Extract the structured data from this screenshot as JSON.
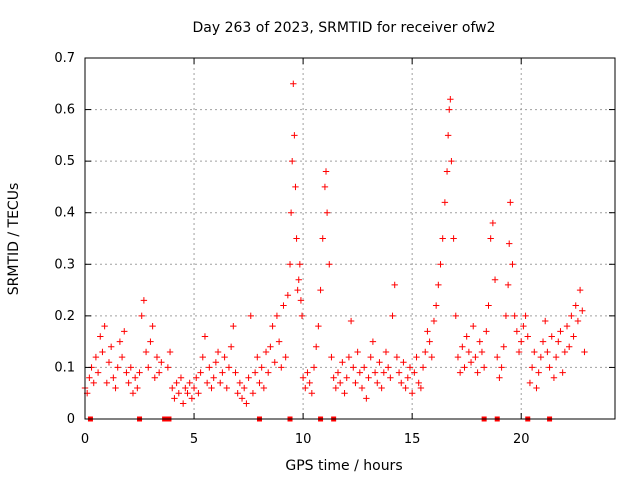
{
  "chart_data": {
    "type": "scatter",
    "title": "Day 263 of 2023, SRMTID for receiver ofw2",
    "xlabel": "GPS time / hours",
    "ylabel": "SRMTID / TECUs",
    "xlim": [
      0,
      24.3
    ],
    "ylim": [
      0,
      0.7
    ],
    "xticks": [
      "0",
      "5",
      "10",
      "15",
      "20"
    ],
    "xtick_values": [
      0,
      5,
      10,
      15,
      20
    ],
    "yticks": [
      "0",
      "0.1",
      "0.2",
      "0.3",
      "0.4",
      "0.5",
      "0.6",
      "0.7"
    ],
    "ytick_values": [
      0,
      0.1,
      0.2,
      0.3,
      0.4,
      0.5,
      0.6,
      0.7
    ],
    "grid": true,
    "marker": "+",
    "color": "#ff0000",
    "baseline_markers_x": [
      0.25,
      2.5,
      3.65,
      3.85,
      8.0,
      9.4,
      10.8,
      11.4,
      18.3,
      18.9,
      20.3,
      21.3
    ],
    "series": [
      {
        "name": "SRMTID",
        "points": [
          [
            0.0,
            0.06
          ],
          [
            0.1,
            0.05
          ],
          [
            0.2,
            0.08
          ],
          [
            0.3,
            0.1
          ],
          [
            0.4,
            0.07
          ],
          [
            0.5,
            0.12
          ],
          [
            0.6,
            0.09
          ],
          [
            0.7,
            0.16
          ],
          [
            0.8,
            0.13
          ],
          [
            0.9,
            0.18
          ],
          [
            1.0,
            0.07
          ],
          [
            1.1,
            0.11
          ],
          [
            1.2,
            0.14
          ],
          [
            1.3,
            0.08
          ],
          [
            1.4,
            0.06
          ],
          [
            1.5,
            0.1
          ],
          [
            1.6,
            0.15
          ],
          [
            1.7,
            0.12
          ],
          [
            1.8,
            0.17
          ],
          [
            1.9,
            0.09
          ],
          [
            2.0,
            0.07
          ],
          [
            2.1,
            0.1
          ],
          [
            2.2,
            0.05
          ],
          [
            2.3,
            0.08
          ],
          [
            2.4,
            0.06
          ],
          [
            2.5,
            0.09
          ],
          [
            2.6,
            0.2
          ],
          [
            2.7,
            0.23
          ],
          [
            2.8,
            0.13
          ],
          [
            2.9,
            0.1
          ],
          [
            3.0,
            0.15
          ],
          [
            3.1,
            0.18
          ],
          [
            3.2,
            0.08
          ],
          [
            3.3,
            0.12
          ],
          [
            3.4,
            0.09
          ],
          [
            3.5,
            0.11
          ],
          [
            3.8,
            0.1
          ],
          [
            3.9,
            0.13
          ],
          [
            4.0,
            0.06
          ],
          [
            4.1,
            0.04
          ],
          [
            4.2,
            0.07
          ],
          [
            4.3,
            0.05
          ],
          [
            4.4,
            0.08
          ],
          [
            4.5,
            0.03
          ],
          [
            4.6,
            0.06
          ],
          [
            4.7,
            0.05
          ],
          [
            4.8,
            0.07
          ],
          [
            4.9,
            0.04
          ],
          [
            5.0,
            0.06
          ],
          [
            5.1,
            0.08
          ],
          [
            5.2,
            0.05
          ],
          [
            5.3,
            0.09
          ],
          [
            5.4,
            0.12
          ],
          [
            5.5,
            0.16
          ],
          [
            5.6,
            0.07
          ],
          [
            5.7,
            0.1
          ],
          [
            5.8,
            0.06
          ],
          [
            5.9,
            0.08
          ],
          [
            6.0,
            0.11
          ],
          [
            6.1,
            0.13
          ],
          [
            6.2,
            0.07
          ],
          [
            6.3,
            0.09
          ],
          [
            6.4,
            0.12
          ],
          [
            6.5,
            0.06
          ],
          [
            6.6,
            0.1
          ],
          [
            6.7,
            0.14
          ],
          [
            6.8,
            0.18
          ],
          [
            6.9,
            0.09
          ],
          [
            7.0,
            0.05
          ],
          [
            7.1,
            0.07
          ],
          [
            7.2,
            0.04
          ],
          [
            7.3,
            0.06
          ],
          [
            7.4,
            0.03
          ],
          [
            7.5,
            0.08
          ],
          [
            7.6,
            0.2
          ],
          [
            7.7,
            0.05
          ],
          [
            7.8,
            0.09
          ],
          [
            7.9,
            0.12
          ],
          [
            8.0,
            0.07
          ],
          [
            8.1,
            0.1
          ],
          [
            8.2,
            0.06
          ],
          [
            8.3,
            0.13
          ],
          [
            8.4,
            0.09
          ],
          [
            8.5,
            0.14
          ],
          [
            8.6,
            0.18
          ],
          [
            8.7,
            0.11
          ],
          [
            8.8,
            0.2
          ],
          [
            8.9,
            0.15
          ],
          [
            9.0,
            0.1
          ],
          [
            9.1,
            0.22
          ],
          [
            9.2,
            0.12
          ],
          [
            9.3,
            0.24
          ],
          [
            9.4,
            0.3
          ],
          [
            9.45,
            0.4
          ],
          [
            9.5,
            0.5
          ],
          [
            9.55,
            0.65
          ],
          [
            9.6,
            0.55
          ],
          [
            9.65,
            0.45
          ],
          [
            9.7,
            0.35
          ],
          [
            9.75,
            0.25
          ],
          [
            9.8,
            0.27
          ],
          [
            9.85,
            0.3
          ],
          [
            9.9,
            0.23
          ],
          [
            9.95,
            0.2
          ],
          [
            10.0,
            0.08
          ],
          [
            10.1,
            0.06
          ],
          [
            10.2,
            0.09
          ],
          [
            10.3,
            0.07
          ],
          [
            10.4,
            0.05
          ],
          [
            10.5,
            0.1
          ],
          [
            10.6,
            0.14
          ],
          [
            10.7,
            0.18
          ],
          [
            10.8,
            0.25
          ],
          [
            10.9,
            0.35
          ],
          [
            11.0,
            0.45
          ],
          [
            11.05,
            0.48
          ],
          [
            11.1,
            0.4
          ],
          [
            11.2,
            0.3
          ],
          [
            11.3,
            0.12
          ],
          [
            11.4,
            0.08
          ],
          [
            11.5,
            0.06
          ],
          [
            11.6,
            0.09
          ],
          [
            11.7,
            0.07
          ],
          [
            11.8,
            0.11
          ],
          [
            11.9,
            0.05
          ],
          [
            12.0,
            0.08
          ],
          [
            12.1,
            0.12
          ],
          [
            12.2,
            0.19
          ],
          [
            12.3,
            0.1
          ],
          [
            12.4,
            0.07
          ],
          [
            12.5,
            0.13
          ],
          [
            12.6,
            0.09
          ],
          [
            12.7,
            0.06
          ],
          [
            12.8,
            0.1
          ],
          [
            12.9,
            0.04
          ],
          [
            13.0,
            0.08
          ],
          [
            13.1,
            0.12
          ],
          [
            13.2,
            0.15
          ],
          [
            13.3,
            0.09
          ],
          [
            13.4,
            0.07
          ],
          [
            13.5,
            0.11
          ],
          [
            13.6,
            0.06
          ],
          [
            13.7,
            0.09
          ],
          [
            13.8,
            0.13
          ],
          [
            13.9,
            0.1
          ],
          [
            14.0,
            0.08
          ],
          [
            14.1,
            0.2
          ],
          [
            14.2,
            0.26
          ],
          [
            14.3,
            0.12
          ],
          [
            14.4,
            0.09
          ],
          [
            14.5,
            0.07
          ],
          [
            14.6,
            0.11
          ],
          [
            14.7,
            0.06
          ],
          [
            14.8,
            0.08
          ],
          [
            14.9,
            0.1
          ],
          [
            15.0,
            0.05
          ],
          [
            15.1,
            0.09
          ],
          [
            15.2,
            0.12
          ],
          [
            15.3,
            0.07
          ],
          [
            15.4,
            0.06
          ],
          [
            15.5,
            0.1
          ],
          [
            15.6,
            0.13
          ],
          [
            15.7,
            0.17
          ],
          [
            15.8,
            0.15
          ],
          [
            15.9,
            0.12
          ],
          [
            16.0,
            0.19
          ],
          [
            16.1,
            0.22
          ],
          [
            16.2,
            0.26
          ],
          [
            16.3,
            0.3
          ],
          [
            16.4,
            0.35
          ],
          [
            16.5,
            0.42
          ],
          [
            16.6,
            0.48
          ],
          [
            16.65,
            0.55
          ],
          [
            16.7,
            0.6
          ],
          [
            16.75,
            0.62
          ],
          [
            16.8,
            0.5
          ],
          [
            16.9,
            0.35
          ],
          [
            17.0,
            0.2
          ],
          [
            17.1,
            0.12
          ],
          [
            17.2,
            0.09
          ],
          [
            17.3,
            0.14
          ],
          [
            17.4,
            0.1
          ],
          [
            17.5,
            0.16
          ],
          [
            17.6,
            0.13
          ],
          [
            17.7,
            0.11
          ],
          [
            17.8,
            0.18
          ],
          [
            17.9,
            0.12
          ],
          [
            18.0,
            0.09
          ],
          [
            18.1,
            0.15
          ],
          [
            18.2,
            0.13
          ],
          [
            18.3,
            0.1
          ],
          [
            18.4,
            0.17
          ],
          [
            18.5,
            0.22
          ],
          [
            18.6,
            0.35
          ],
          [
            18.7,
            0.38
          ],
          [
            18.8,
            0.27
          ],
          [
            18.9,
            0.12
          ],
          [
            19.0,
            0.08
          ],
          [
            19.1,
            0.1
          ],
          [
            19.2,
            0.14
          ],
          [
            19.3,
            0.2
          ],
          [
            19.4,
            0.26
          ],
          [
            19.45,
            0.34
          ],
          [
            19.5,
            0.42
          ],
          [
            19.6,
            0.3
          ],
          [
            19.7,
            0.2
          ],
          [
            19.8,
            0.17
          ],
          [
            19.9,
            0.13
          ],
          [
            20.0,
            0.15
          ],
          [
            20.1,
            0.18
          ],
          [
            20.2,
            0.2
          ],
          [
            20.3,
            0.16
          ],
          [
            20.4,
            0.07
          ],
          [
            20.5,
            0.1
          ],
          [
            20.6,
            0.13
          ],
          [
            20.7,
            0.06
          ],
          [
            20.8,
            0.09
          ],
          [
            20.9,
            0.12
          ],
          [
            21.0,
            0.15
          ],
          [
            21.1,
            0.19
          ],
          [
            21.2,
            0.13
          ],
          [
            21.3,
            0.1
          ],
          [
            21.4,
            0.16
          ],
          [
            21.5,
            0.08
          ],
          [
            21.6,
            0.12
          ],
          [
            21.7,
            0.15
          ],
          [
            21.8,
            0.17
          ],
          [
            21.9,
            0.09
          ],
          [
            22.0,
            0.13
          ],
          [
            22.1,
            0.18
          ],
          [
            22.2,
            0.14
          ],
          [
            22.3,
            0.2
          ],
          [
            22.4,
            0.16
          ],
          [
            22.5,
            0.22
          ],
          [
            22.6,
            0.19
          ],
          [
            22.7,
            0.25
          ],
          [
            22.8,
            0.21
          ],
          [
            22.9,
            0.13
          ]
        ]
      }
    ]
  }
}
